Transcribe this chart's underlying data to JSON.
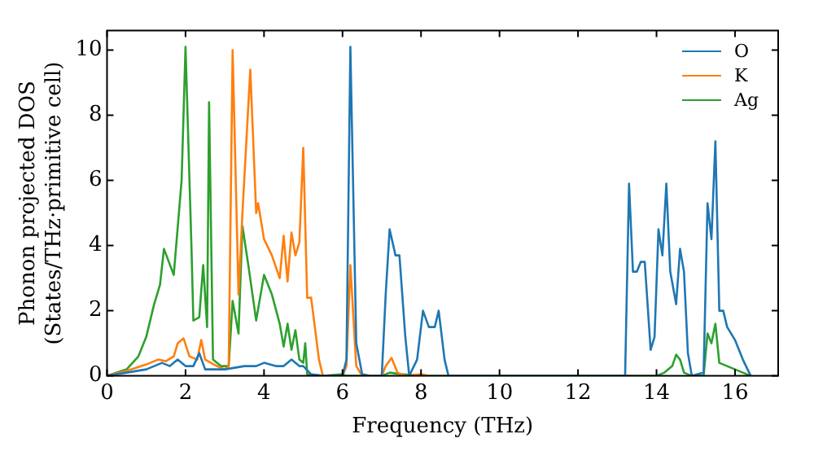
{
  "chart_data": {
    "type": "line",
    "xlabel": "Frequency (THz)",
    "ylabel": "Phonon projected DOS\n(States/THz·primitive cell)",
    "xlim": [
      0,
      17.1
    ],
    "ylim": [
      0,
      10.6
    ],
    "xticks": [
      0,
      2,
      4,
      6,
      8,
      10,
      12,
      14,
      16
    ],
    "yticks": [
      0,
      2,
      4,
      6,
      8,
      10
    ],
    "grid": false,
    "legend": "top right",
    "marker": "none",
    "line_style": "solid",
    "series": [
      {
        "name": "O",
        "color": "#1f77b4",
        "x": [
          0,
          1.0,
          1.4,
          1.6,
          1.8,
          2.0,
          2.2,
          2.35,
          2.5,
          3.0,
          3.5,
          3.8,
          4.0,
          4.3,
          4.5,
          4.7,
          4.9,
          5.0,
          5.2,
          5.5,
          6.0,
          6.1,
          6.2,
          6.35,
          6.5,
          6.7,
          7.0,
          7.1,
          7.2,
          7.35,
          7.45,
          7.6,
          7.7,
          7.9,
          8.05,
          8.2,
          8.35,
          8.45,
          8.6,
          8.7,
          13.2,
          13.3,
          13.4,
          13.5,
          13.6,
          13.7,
          13.85,
          13.95,
          14.05,
          14.15,
          14.25,
          14.35,
          14.5,
          14.6,
          14.7,
          14.8,
          14.9,
          15.2,
          15.3,
          15.4,
          15.5,
          15.6,
          15.7,
          15.8,
          15.9,
          16.0,
          16.2,
          16.4
        ],
        "values": [
          0,
          0.2,
          0.4,
          0.3,
          0.5,
          0.3,
          0.3,
          0.7,
          0.2,
          0.2,
          0.3,
          0.3,
          0.4,
          0.3,
          0.3,
          0.5,
          0.3,
          0.3,
          0.05,
          0,
          0,
          0.5,
          10.1,
          1.0,
          0.05,
          0,
          0,
          2.5,
          4.5,
          3.7,
          3.7,
          1.2,
          0,
          0.5,
          2.0,
          1.5,
          1.5,
          2.0,
          0.5,
          0,
          0,
          5.9,
          3.2,
          3.2,
          3.5,
          3.5,
          0.8,
          1.2,
          4.5,
          3.7,
          5.9,
          3.2,
          2.2,
          3.9,
          3.2,
          0.7,
          0,
          0.1,
          5.3,
          4.2,
          7.2,
          2.0,
          2.0,
          1.5,
          1.3,
          1.1,
          0.5,
          0
        ]
      },
      {
        "name": "K",
        "color": "#ff7f0e",
        "x": [
          0,
          0.5,
          1.0,
          1.3,
          1.5,
          1.7,
          1.8,
          1.95,
          2.1,
          2.3,
          2.4,
          2.5,
          2.8,
          3.0,
          3.1,
          3.2,
          3.35,
          3.45,
          3.65,
          3.8,
          3.85,
          4.0,
          4.2,
          4.4,
          4.5,
          4.6,
          4.7,
          4.8,
          4.9,
          5.0,
          5.1,
          5.2,
          5.4,
          5.5,
          6.0,
          6.1,
          6.2,
          6.35,
          6.5,
          7.0,
          7.1,
          7.25,
          7.4,
          7.6,
          8.0,
          8.2
        ],
        "values": [
          0,
          0.15,
          0.35,
          0.5,
          0.45,
          0.6,
          1.0,
          1.15,
          0.6,
          0.5,
          1.1,
          0.5,
          0.3,
          0.2,
          0.3,
          10.0,
          2.5,
          5.0,
          9.4,
          5.0,
          5.3,
          4.2,
          3.7,
          3.0,
          4.3,
          2.9,
          4.4,
          3.7,
          4.1,
          7.0,
          2.4,
          2.4,
          0.5,
          0,
          0,
          0.3,
          3.4,
          0.3,
          0,
          0,
          0.3,
          0.55,
          0.1,
          0,
          0.05,
          0
        ]
      },
      {
        "name": "Ag",
        "color": "#2ca02c",
        "x": [
          0,
          0.5,
          0.8,
          1.0,
          1.2,
          1.35,
          1.45,
          1.7,
          1.9,
          2.0,
          2.15,
          2.2,
          2.35,
          2.45,
          2.55,
          2.6,
          2.7,
          2.9,
          3.1,
          3.2,
          3.35,
          3.45,
          3.6,
          3.8,
          4.0,
          4.2,
          4.4,
          4.5,
          4.6,
          4.7,
          4.8,
          4.9,
          5.0,
          5.05,
          5.1,
          5.5,
          6.0,
          6.1,
          7.0,
          7.2,
          7.5,
          8.0,
          14.0,
          14.2,
          14.4,
          14.5,
          14.6,
          14.7,
          14.9,
          15.2,
          15.3,
          15.4,
          15.5,
          15.6,
          15.8,
          16.0,
          16.3,
          16.4
        ],
        "values": [
          0,
          0.2,
          0.6,
          1.2,
          2.2,
          2.8,
          3.9,
          3.1,
          6.0,
          10.1,
          4.0,
          1.7,
          1.8,
          3.4,
          1.5,
          8.4,
          0.5,
          0.3,
          0.3,
          2.3,
          1.3,
          4.6,
          3.4,
          1.7,
          3.1,
          2.5,
          1.6,
          0.9,
          1.6,
          0.8,
          1.4,
          0.5,
          0.4,
          1.0,
          0.05,
          0,
          0.05,
          0,
          0,
          0.1,
          0.05,
          0,
          0,
          0.1,
          0.3,
          0.65,
          0.5,
          0.1,
          0,
          0,
          1.3,
          1.0,
          1.6,
          0.4,
          0.3,
          0.2,
          0.05,
          0
        ]
      }
    ]
  }
}
